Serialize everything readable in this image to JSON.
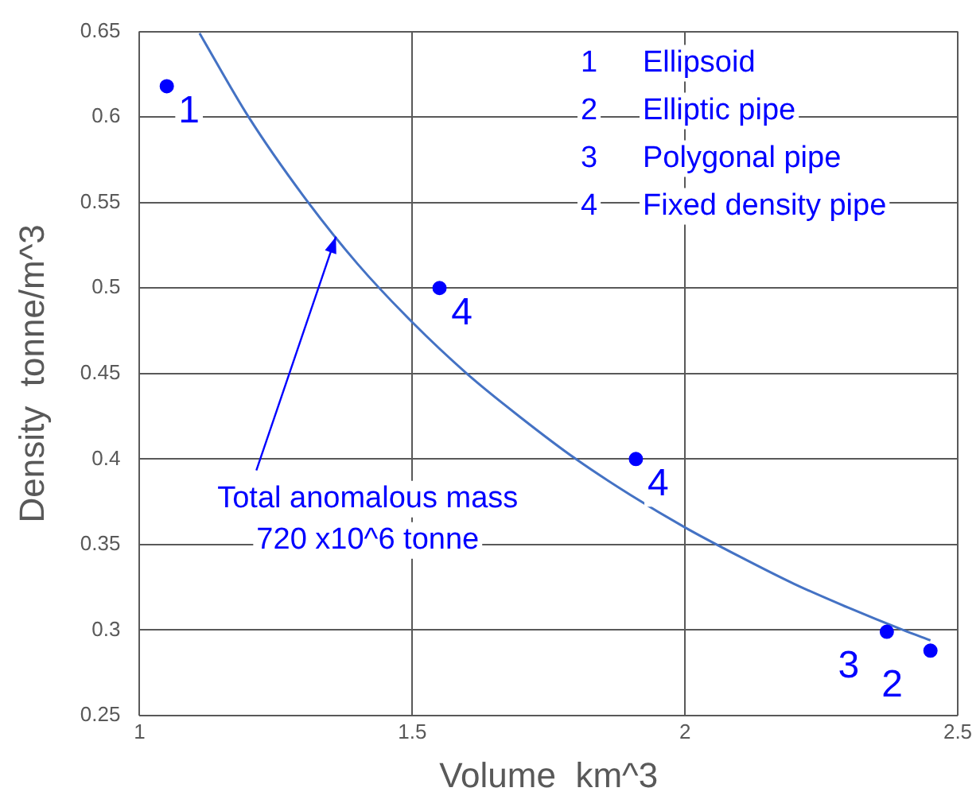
{
  "chart_data": {
    "type": "scatter",
    "xlabel": "Volume  km^3",
    "ylabel": "Density  tonne/m^3",
    "xlim": [
      1,
      2.5
    ],
    "xticks": [
      1,
      1.5,
      2,
      2.5
    ],
    "ylim": [
      0.25,
      0.65
    ],
    "yticks": [
      0.25,
      0.3,
      0.35,
      0.4,
      0.45,
      0.5,
      0.55,
      0.6,
      0.65
    ],
    "grid": true,
    "legend": false,
    "marker": "circle",
    "series": [
      {
        "color": "#0000ff",
        "x": [
          1.05,
          1.55,
          1.91,
          2.37,
          2.45
        ],
        "values": [
          0.618,
          0.5,
          0.4,
          0.299,
          0.288
        ]
      },
      {
        "type": "line",
        "color": "#4472c4",
        "marker": "none",
        "x": [
          1.11,
          1.2,
          1.3,
          1.4,
          1.5,
          1.6,
          1.7,
          1.8,
          1.9,
          2.0,
          2.1,
          2.2,
          2.3,
          2.4,
          2.45
        ],
        "values": [
          0.649,
          0.6,
          0.554,
          0.514,
          0.48,
          0.45,
          0.424,
          0.4,
          0.379,
          0.36,
          0.343,
          0.327,
          0.313,
          0.3,
          0.294
        ]
      }
    ],
    "annotations": [
      "1 Ellipsoid",
      "2 Elliptic pipe",
      "3 Polygonal pipe",
      "4 Fixed density pipe",
      {
        "text": "1",
        "x": 1.05,
        "y": 0.618
      },
      {
        "text": "4",
        "x": 1.55,
        "y": 0.5
      },
      {
        "text": "4",
        "x": 1.91,
        "y": 0.4
      },
      {
        "text": "3",
        "x": 2.37,
        "y": 0.299
      },
      {
        "text": "2",
        "x": 2.45,
        "y": 0.288
      },
      {
        "text": "Total anomalous mass\n720 x10^6 tonne",
        "x": 1.36,
        "y": 0.53
      }
    ]
  }
}
